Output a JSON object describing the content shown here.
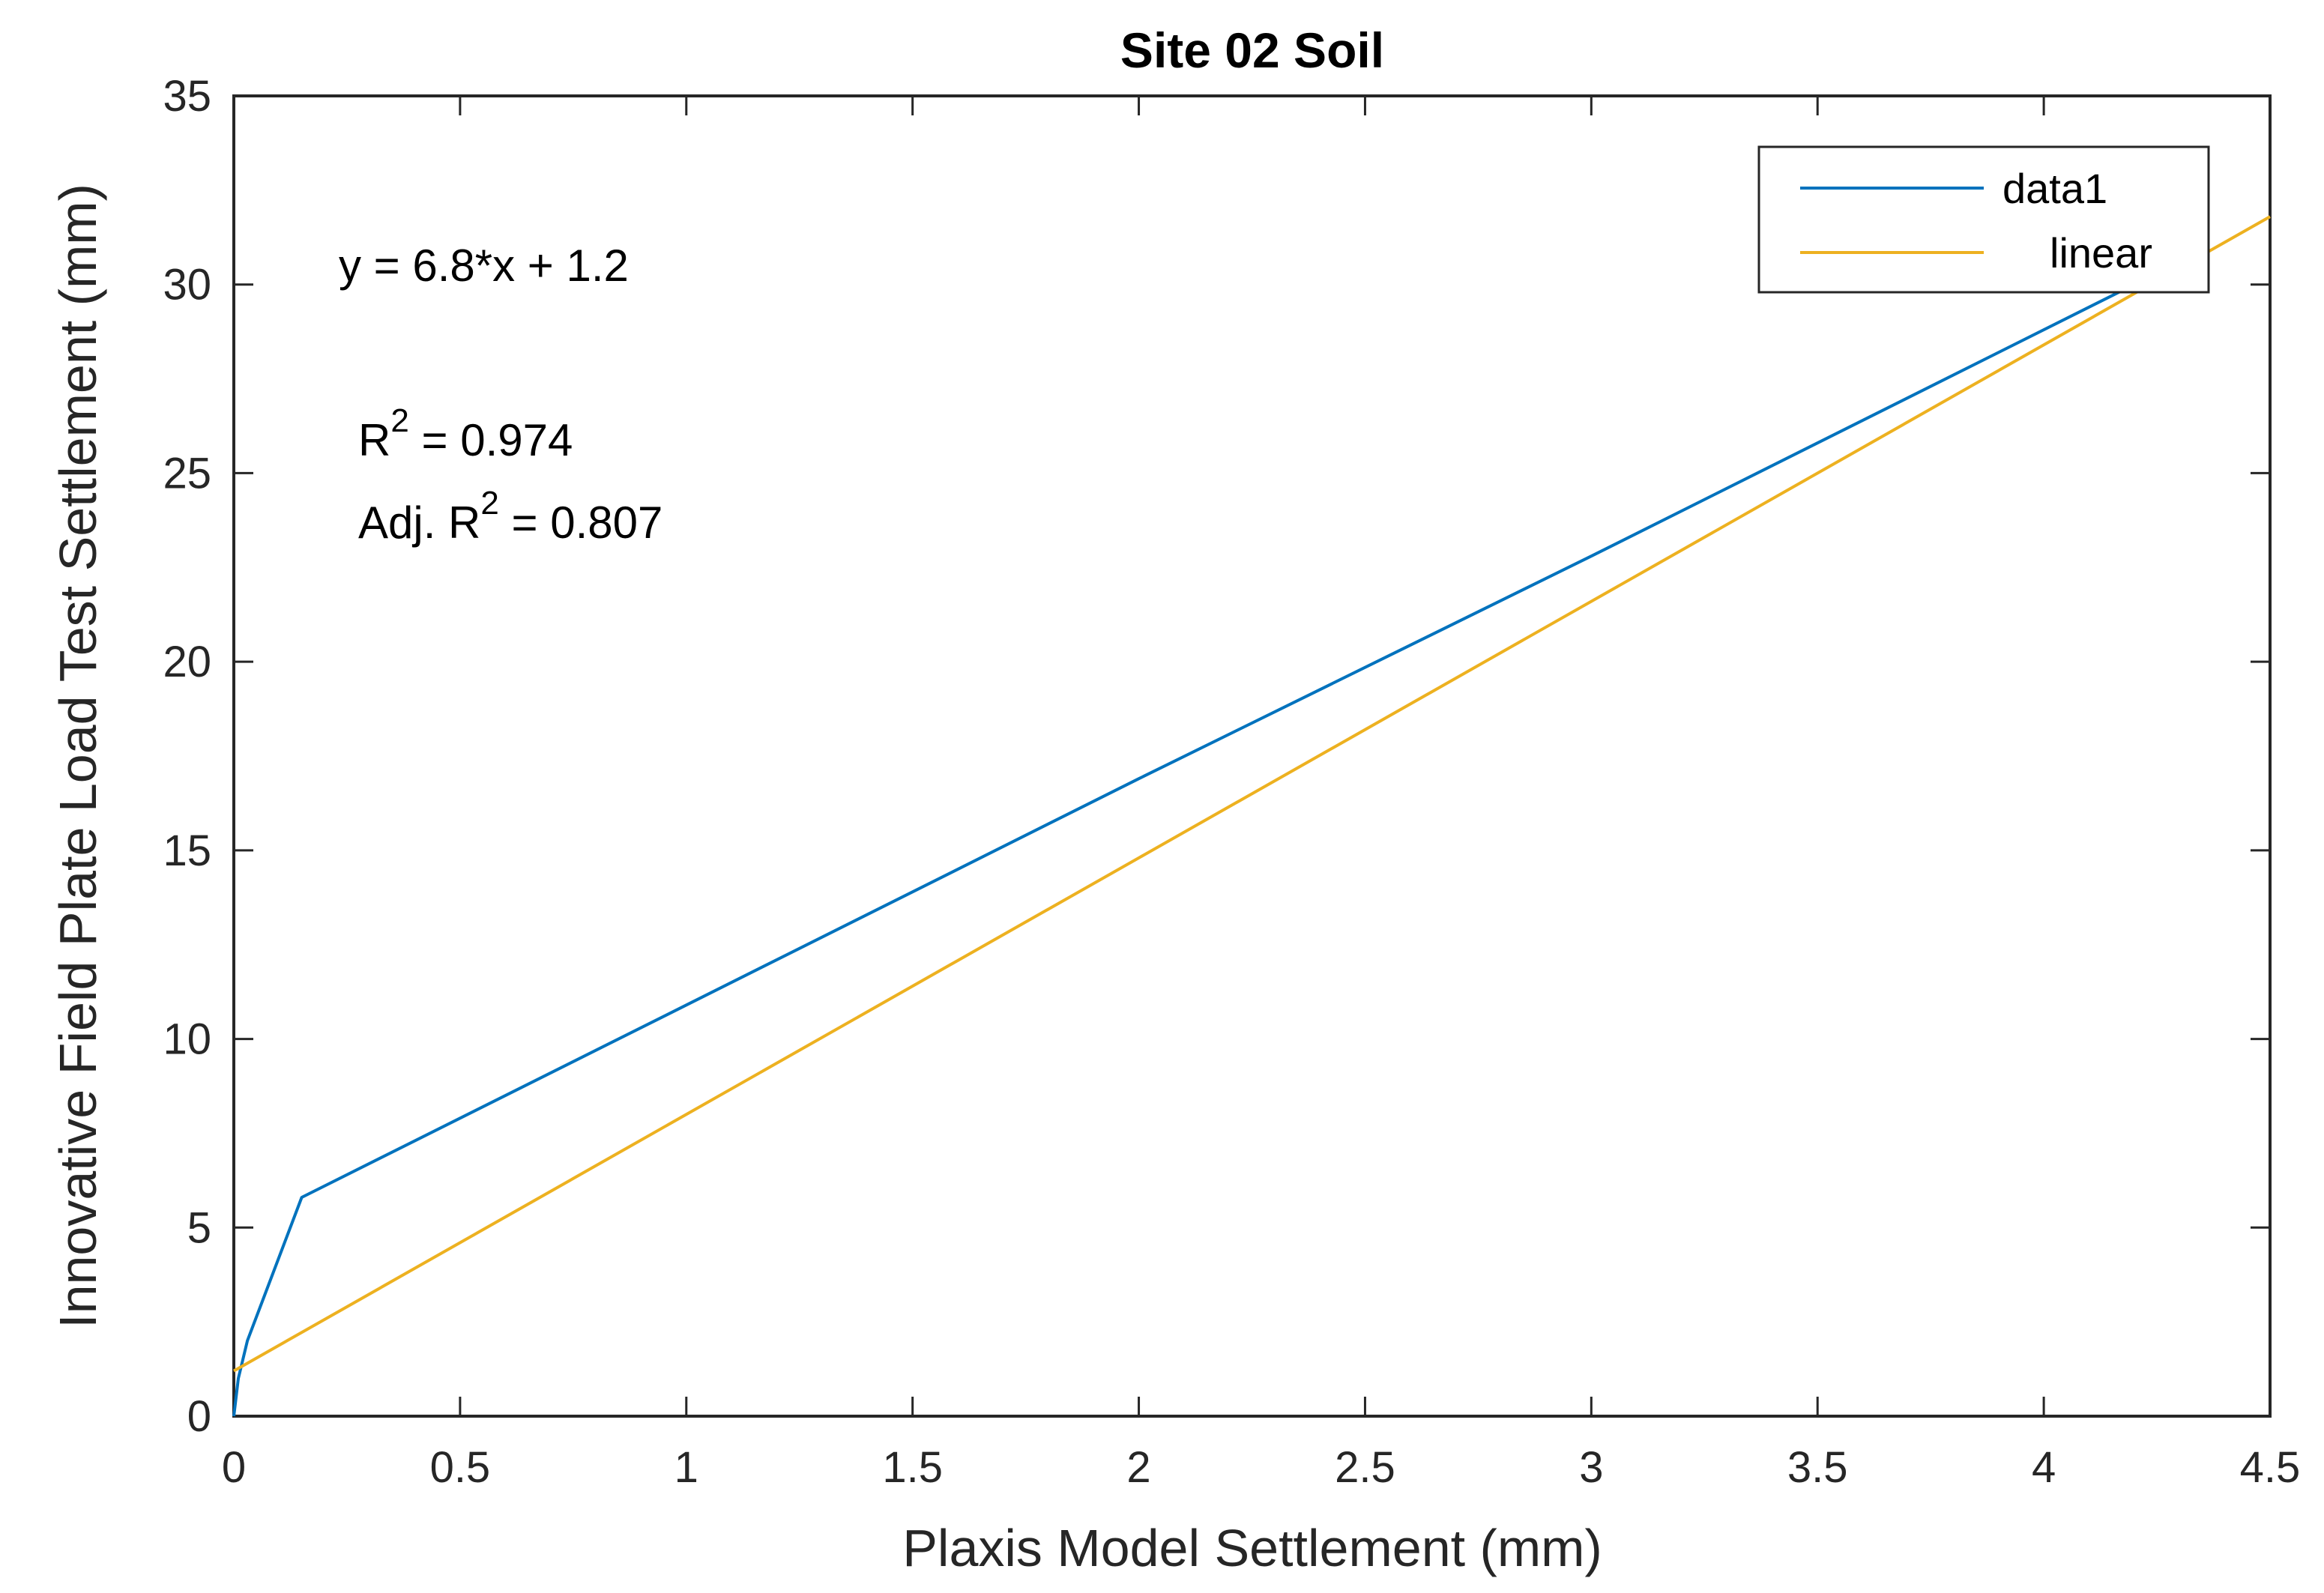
{
  "chart_data": {
    "type": "line",
    "title": "Site 02 Soil",
    "xlabel": "Plaxis Model Settlement (mm)",
    "ylabel": "Innovative Field Plate Load Test Settlement (mm)",
    "xlim": [
      0,
      4.5
    ],
    "ylim": [
      0,
      35
    ],
    "xticks": [
      0,
      0.5,
      1,
      1.5,
      2,
      2.5,
      3,
      3.5,
      4,
      4.5
    ],
    "xtick_labels": [
      "0",
      "0.5",
      "1",
      "1.5",
      "2",
      "2.5",
      "3",
      "3.5",
      "4",
      "4.5"
    ],
    "yticks": [
      0,
      5,
      10,
      15,
      20,
      25,
      30,
      35
    ],
    "ytick_labels": [
      "0",
      "5",
      "10",
      "15",
      "20",
      "25",
      "30",
      "35"
    ],
    "grid": false,
    "legend_position": "top-right",
    "series": [
      {
        "name": "data1",
        "color": "#0072BD",
        "x": [
          0,
          0.01,
          0.03,
          0.15,
          1.0,
          2.0,
          3.0,
          4.2
        ],
        "y": [
          0,
          1.0,
          2.0,
          5.8,
          10.9,
          16.9,
          22.8,
          30.0
        ]
      },
      {
        "name": "linear",
        "color": "#EDB120",
        "x": [
          0,
          4.5
        ],
        "y": [
          1.2,
          31.8
        ]
      }
    ],
    "annotations": {
      "equation": "y = 6.8*x + 1.2",
      "r2_prefix": "R",
      "r2_exp": "2",
      "r2_value": " = 0.974",
      "adj_prefix": "Adj. R",
      "adj_exp": "2",
      "adj_value": " = 0.807"
    }
  }
}
